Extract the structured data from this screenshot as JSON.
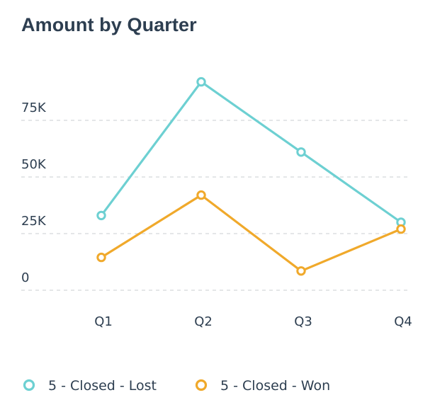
{
  "chart_data": {
    "type": "line",
    "title": "Amount by Quarter",
    "xlabel": "",
    "ylabel": "",
    "categories": [
      "Q1",
      "Q2",
      "Q3",
      "Q4"
    ],
    "yticks": [
      {
        "value": 0,
        "label": "0"
      },
      {
        "value": 25000,
        "label": "25K"
      },
      {
        "value": 50000,
        "label": "50K"
      },
      {
        "value": 75000,
        "label": "75K"
      }
    ],
    "ylim": [
      0,
      100000
    ],
    "grid": true,
    "legend_position": "bottom",
    "series": [
      {
        "name": "5 - Closed - Lost",
        "color": "#6dd0d2",
        "values": [
          33000,
          92000,
          61000,
          30000
        ]
      },
      {
        "name": "5 - Closed - Won",
        "color": "#f0a92b",
        "values": [
          14500,
          42000,
          8500,
          27000
        ]
      }
    ]
  }
}
